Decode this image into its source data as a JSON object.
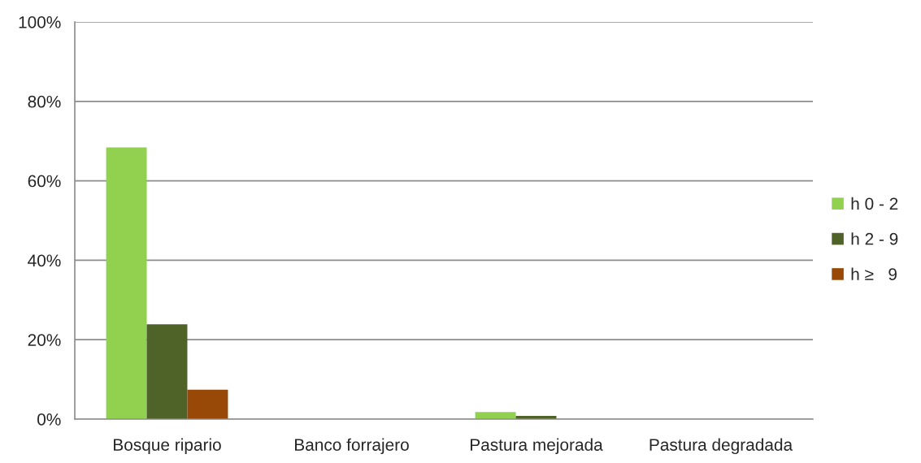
{
  "chart_data": {
    "type": "bar",
    "categories": [
      "Bosque ripario",
      "Banco forrajero",
      "Pastura mejorada",
      "Pastura degradada"
    ],
    "series": [
      {
        "name": "h 0 - 2",
        "color": "#92d050",
        "values": [
          68.4,
          0,
          1.8,
          0
        ]
      },
      {
        "name": "h 2 - 9",
        "color": "#4f6228",
        "values": [
          23.9,
          0,
          0.8,
          0
        ]
      },
      {
        "name": "h ≥   9",
        "color": "#984807",
        "values": [
          7.4,
          0,
          0,
          0
        ]
      }
    ],
    "ylim": [
      0,
      100
    ],
    "yticks": [
      {
        "value": 0,
        "label": "0%"
      },
      {
        "value": 20,
        "label": "20%"
      },
      {
        "value": 40,
        "label": "40%"
      },
      {
        "value": 60,
        "label": "60%"
      },
      {
        "value": 80,
        "label": "80%"
      },
      {
        "value": 100,
        "label": "100%"
      }
    ],
    "grid": "y",
    "legend": "right"
  }
}
